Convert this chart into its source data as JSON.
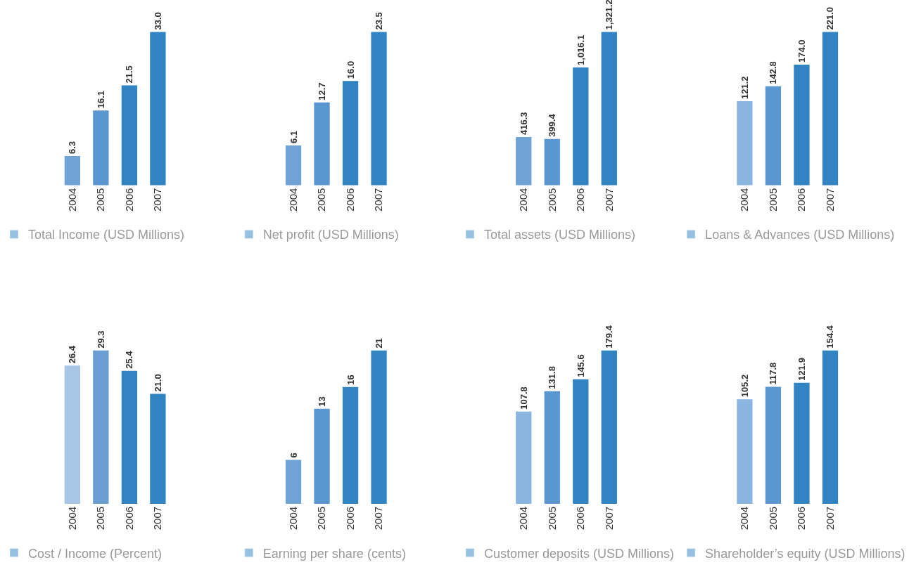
{
  "chart_data": [
    {
      "type": "bar",
      "categories": [
        "2004",
        "2005",
        "2006",
        "2007"
      ],
      "tick_labels": "x",
      "legend": "bottom",
      "series": [
        {
          "name": "Total Income (USD Millions)",
          "color": "#3183c2",
          "colors": [
            "#6fa3d6",
            "#5a96cf",
            "#3183c2",
            "#3183c2"
          ],
          "values": [
            6.3,
            16.1,
            21.5,
            33.0
          ],
          "value_labels": [
            "6.3",
            "16.1",
            "21.5",
            "33.0"
          ]
        }
      ]
    },
    {
      "type": "bar",
      "categories": [
        "2004",
        "2005",
        "2006",
        "2007"
      ],
      "tick_labels": "x",
      "legend": "bottom",
      "series": [
        {
          "name": "Net profit (USD Millions)",
          "color": "#3183c2",
          "colors": [
            "#6fa3d6",
            "#5a96cf",
            "#3183c2",
            "#3183c2"
          ],
          "values": [
            6.1,
            12.7,
            16.0,
            23.5
          ],
          "value_labels": [
            "6.1",
            "12.7",
            "16.0",
            "23.5"
          ]
        }
      ]
    },
    {
      "type": "bar",
      "categories": [
        "2004",
        "2005",
        "2006",
        "2007"
      ],
      "tick_labels": "x",
      "legend": "bottom",
      "series": [
        {
          "name": "Total assets (USD Millions)",
          "color": "#3183c2",
          "colors": [
            "#6fa3d6",
            "#5a96cf",
            "#3183c2",
            "#3183c2"
          ],
          "values": [
            416.3,
            399.4,
            1016.1,
            1321.2
          ],
          "value_labels": [
            "416.3",
            "399.4",
            "1,016.1",
            "1,321.2"
          ]
        }
      ]
    },
    {
      "type": "bar",
      "categories": [
        "2004",
        "2005",
        "2006",
        "2007"
      ],
      "tick_labels": "x",
      "legend": "bottom",
      "series": [
        {
          "name": "Loans & Advances (USD Millions)",
          "color": "#3183c2",
          "colors": [
            "#8ab5df",
            "#5a96cf",
            "#3183c2",
            "#3183c2"
          ],
          "values": [
            121.2,
            142.8,
            174.0,
            221.0
          ],
          "value_labels": [
            "121.2",
            "142.8",
            "174.0",
            "221.0"
          ]
        }
      ]
    },
    {
      "type": "bar",
      "categories": [
        "2004",
        "2005",
        "2006",
        "2007"
      ],
      "tick_labels": "x",
      "legend": "bottom",
      "series": [
        {
          "name": "Cost / Income (Percent)",
          "color": "#3183c2",
          "colors": [
            "#a7c5e4",
            "#6b9fd3",
            "#3183c2",
            "#3183c2"
          ],
          "values": [
            26.4,
            29.3,
            25.4,
            21.0
          ],
          "value_labels": [
            "26.4",
            "29.3",
            "25.4",
            "21.0"
          ]
        }
      ]
    },
    {
      "type": "bar",
      "categories": [
        "2004",
        "2005",
        "2006",
        "2007"
      ],
      "tick_labels": "x",
      "legend": "bottom",
      "series": [
        {
          "name": "Earning per share (cents)",
          "color": "#3183c2",
          "colors": [
            "#6fa3d6",
            "#5a96cf",
            "#3183c2",
            "#3183c2"
          ],
          "values": [
            6,
            13,
            16,
            21
          ],
          "value_labels": [
            "6",
            "13",
            "16",
            "21"
          ]
        }
      ]
    },
    {
      "type": "bar",
      "categories": [
        "2004",
        "2005",
        "2006",
        "2007"
      ],
      "tick_labels": "x",
      "legend": "bottom",
      "series": [
        {
          "name": "Customer deposits (USD Millions)",
          "color": "#3183c2",
          "colors": [
            "#8ab5df",
            "#5a96cf",
            "#3183c2",
            "#3183c2"
          ],
          "values": [
            107.8,
            131.8,
            145.6,
            179.4
          ],
          "value_labels": [
            "107.8",
            "131.8",
            "145.6",
            "179.4"
          ]
        }
      ]
    },
    {
      "type": "bar",
      "categories": [
        "2004",
        "2005",
        "2006",
        "2007"
      ],
      "tick_labels": "x",
      "legend": "bottom",
      "series": [
        {
          "name": "Shareholder’s equity (USD Millions)",
          "color": "#3183c2",
          "colors": [
            "#8ab5df",
            "#5a96cf",
            "#3183c2",
            "#3183c2"
          ],
          "values": [
            105.2,
            117.8,
            121.9,
            154.4
          ],
          "value_labels": [
            "105.2",
            "117.8",
            "121.9",
            "154.4"
          ]
        }
      ]
    }
  ]
}
